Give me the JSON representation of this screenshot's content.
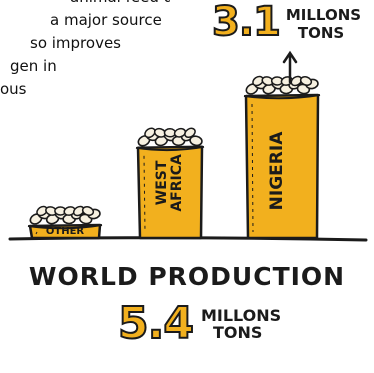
{
  "text_fragment": {
    "lines": [
      "animal feed during",
      "a major source",
      "so improves",
      "gen in",
      "ous"
    ]
  },
  "nigeria_total": {
    "value": "3.1",
    "unit_line1": "MILLONS",
    "unit_line2": "TONS"
  },
  "world": {
    "title": "WORLD PRODUCTION",
    "value": "5.4",
    "unit_line1": "MILLONS",
    "unit_line2": "TONS"
  },
  "colors": {
    "accent": "#f2b01e",
    "ink": "#1b1b1b"
  },
  "chart_data": {
    "type": "bar",
    "categories": [
      "OTHER",
      "WEST AFRICA",
      "NIGERIA"
    ],
    "values": [
      0.3,
      2.0,
      3.1
    ],
    "unit": "million tons",
    "bar_labels": [
      "OTHER",
      "WEST AFRICA",
      "NIGERIA"
    ]
  }
}
